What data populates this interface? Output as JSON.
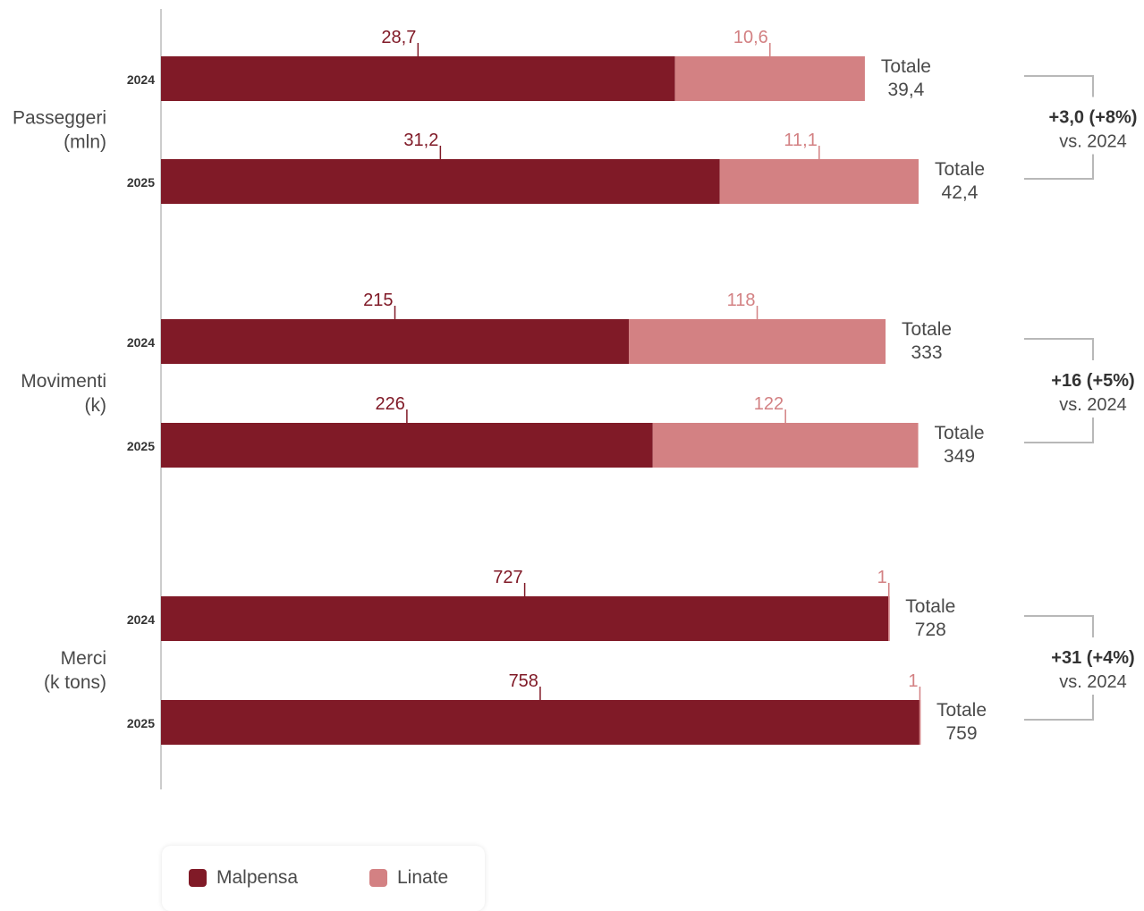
{
  "chart_data": {
    "type": "bar",
    "orientation": "horizontal",
    "stacked": true,
    "colors": {
      "malpensa": "#801A27",
      "linate": "#D38183"
    },
    "legend": [
      {
        "key": "malpensa",
        "label": "Malpensa"
      },
      {
        "key": "linate",
        "label": "Linate"
      }
    ],
    "total_label": "Totale",
    "groups": [
      {
        "label": "Passeggeri",
        "unit": "(mln)",
        "bars": [
          {
            "year": "2024",
            "malpensa": 28.7,
            "linate": 10.6,
            "total": 39.4,
            "malpensa_label": "28,7",
            "linate_label": "10,6",
            "total_text": "39,4"
          },
          {
            "year": "2025",
            "malpensa": 31.2,
            "linate": 11.1,
            "total": 42.4,
            "malpensa_label": "31,2",
            "linate_label": "11,1",
            "total_text": "42,4"
          }
        ],
        "delta": "+3,0 (+8%)",
        "delta_ref": "vs. 2024"
      },
      {
        "label": "Movimenti",
        "unit": "(k)",
        "bars": [
          {
            "year": "2024",
            "malpensa": 215,
            "linate": 118,
            "total": 333,
            "malpensa_label": "215",
            "linate_label": "118",
            "total_text": "333"
          },
          {
            "year": "2025",
            "malpensa": 226,
            "linate": 122,
            "total": 349,
            "malpensa_label": "226",
            "linate_label": "122",
            "total_text": "349"
          }
        ],
        "delta": "+16 (+5%)",
        "delta_ref": "vs. 2024"
      },
      {
        "label": "Merci",
        "unit": "(k tons)",
        "bars": [
          {
            "year": "2024",
            "malpensa": 727,
            "linate": 1,
            "total": 728,
            "malpensa_label": "727",
            "linate_label": "1",
            "total_text": "728"
          },
          {
            "year": "2025",
            "malpensa": 758,
            "linate": 1,
            "total": 759,
            "malpensa_label": "758",
            "linate_label": "1",
            "total_text": "759"
          }
        ],
        "delta": "+31 (+4%)",
        "delta_ref": "vs. 2024"
      }
    ]
  }
}
